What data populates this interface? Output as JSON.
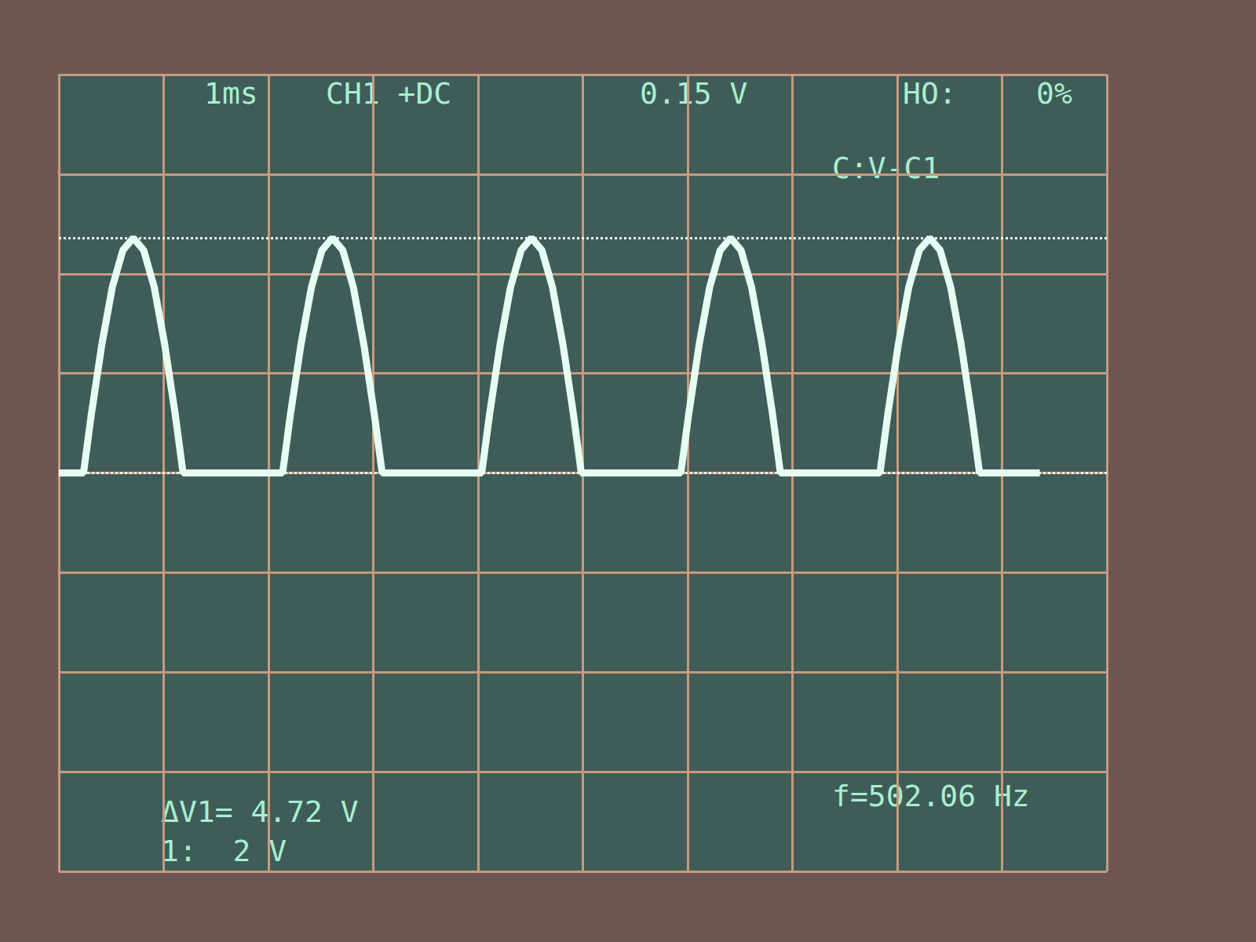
{
  "chart_data": {
    "type": "line",
    "header": [
      "1ms",
      "CH1 +DC",
      "0.15 V",
      "HO:",
      "0%"
    ],
    "cursor_mode": "C:V-C1",
    "readouts": [
      "ΔV1= 4.72 V",
      "1:  2 V",
      "f=502.06 Hz"
    ],
    "x": [
      0,
      0.235,
      0.31,
      0.41,
      0.51,
      0.61,
      0.71,
      0.81,
      0.91,
      1.01,
      1.11,
      1.185,
      2.135,
      2.21,
      2.31,
      2.41,
      2.51,
      2.61,
      2.71,
      2.81,
      2.91,
      3.01,
      3.085,
      4.035,
      4.11,
      4.21,
      4.31,
      4.41,
      4.51,
      4.61,
      4.71,
      4.81,
      4.91,
      4.985,
      5.935,
      6.01,
      6.11,
      6.21,
      6.31,
      6.41,
      6.51,
      6.61,
      6.71,
      6.81,
      6.885,
      7.835,
      7.91,
      8.01,
      8.11,
      8.21,
      8.31,
      8.41,
      8.51,
      8.61,
      8.71,
      8.785,
      9.36
    ],
    "values": [
      0,
      0,
      1.18,
      2.58,
      3.73,
      4.47,
      4.72,
      4.47,
      3.73,
      2.58,
      1.18,
      0,
      0,
      1.18,
      2.58,
      3.73,
      4.47,
      4.72,
      4.47,
      3.73,
      2.58,
      1.18,
      0,
      0,
      1.18,
      2.58,
      3.73,
      4.47,
      4.72,
      4.47,
      3.73,
      2.58,
      1.18,
      0,
      0,
      1.18,
      2.58,
      3.73,
      4.47,
      4.72,
      4.47,
      3.73,
      2.58,
      1.18,
      0,
      0,
      1.18,
      2.58,
      3.73,
      4.47,
      4.72,
      4.47,
      3.73,
      2.58,
      1.18,
      0,
      0
    ],
    "cursors": [
      0,
      4.72
    ],
    "color": "#e6fff2",
    "xlim": [
      0,
      10
    ],
    "xticks": [
      0,
      1,
      2,
      3,
      4,
      5,
      6,
      7,
      8,
      9,
      10
    ],
    "ylim": [
      -8,
      8
    ],
    "yticks": [
      -8,
      -6,
      -4,
      -2,
      0,
      2,
      4,
      6,
      8
    ],
    "grid": true,
    "tick_labels": false,
    "marker": "none"
  }
}
